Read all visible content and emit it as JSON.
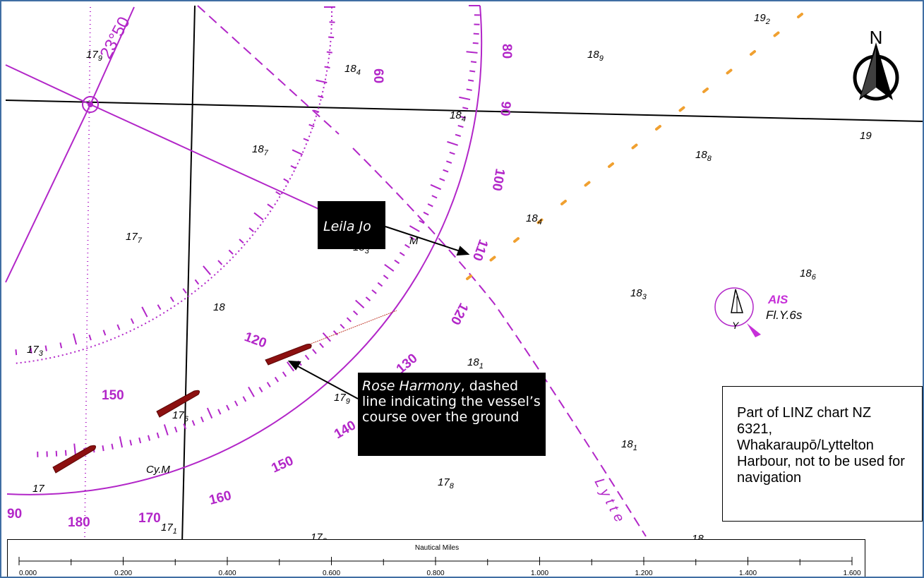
{
  "labels": {
    "vessel_1": "Leila Jo",
    "vessel_2_name": "Rose Harmony",
    "vessel_2_note": ", dashed line indicating the vessel’s course over the ground",
    "chart_note": "Part of LINZ chart NZ 6321, Whakaraupō/Lyttelton Harbour, not to be used for navigation"
  },
  "north": {
    "letter": "N"
  },
  "beacon": {
    "ais": "AIS",
    "light": "Fl.Y.6s",
    "topmark": "Y"
  },
  "chart_marks": {
    "lat": "23°50",
    "cy_m_upper": "M",
    "cy_m_lower": "Cy.M",
    "lytte": "Lytte"
  },
  "soundings": [
    {
      "main": "17",
      "sub": "9"
    },
    {
      "main": "18",
      "sub": "4"
    },
    {
      "main": "18",
      "sub": "9"
    },
    {
      "main": "19",
      "sub": "2"
    },
    {
      "main": "18",
      "sub": "4"
    },
    {
      "main": "19",
      "sub": ""
    },
    {
      "main": "18",
      "sub": "7"
    },
    {
      "main": "18",
      "sub": "8"
    },
    {
      "main": "17",
      "sub": "7"
    },
    {
      "main": "18",
      "sub": "4"
    },
    {
      "main": "18",
      "sub": "3"
    },
    {
      "main": "18",
      "sub": "6"
    },
    {
      "main": "18",
      "sub": "3"
    },
    {
      "main": "18",
      "sub": ""
    },
    {
      "main": "17",
      "sub": "3"
    },
    {
      "main": "18",
      "sub": "1"
    },
    {
      "main": "17",
      "sub": "6"
    },
    {
      "main": "17",
      "sub": "9"
    },
    {
      "main": "18",
      "sub": "1"
    },
    {
      "main": "17",
      "sub": ""
    },
    {
      "main": "17",
      "sub": "8"
    },
    {
      "main": "17",
      "sub": "1"
    },
    {
      "main": "17",
      "sub": "3"
    },
    {
      "main": "18",
      "sub": ""
    }
  ],
  "compass_outer": [
    "80",
    "90",
    "100",
    "110",
    "120"
  ],
  "compass_inner": [
    "60",
    "120",
    "150"
  ],
  "compass_lower": [
    "90",
    "180",
    "170",
    "160",
    "150",
    "140",
    "130"
  ],
  "scale": {
    "title": "Nautical Miles",
    "ticks": [
      "0.000",
      "0.200",
      "0.400",
      "0.600",
      "0.800",
      "1.000",
      "1.200",
      "1.400",
      "1.600"
    ]
  },
  "colors": {
    "magenta": "#b226c8",
    "vessel": "#8c1010",
    "route": "#f0a030"
  }
}
